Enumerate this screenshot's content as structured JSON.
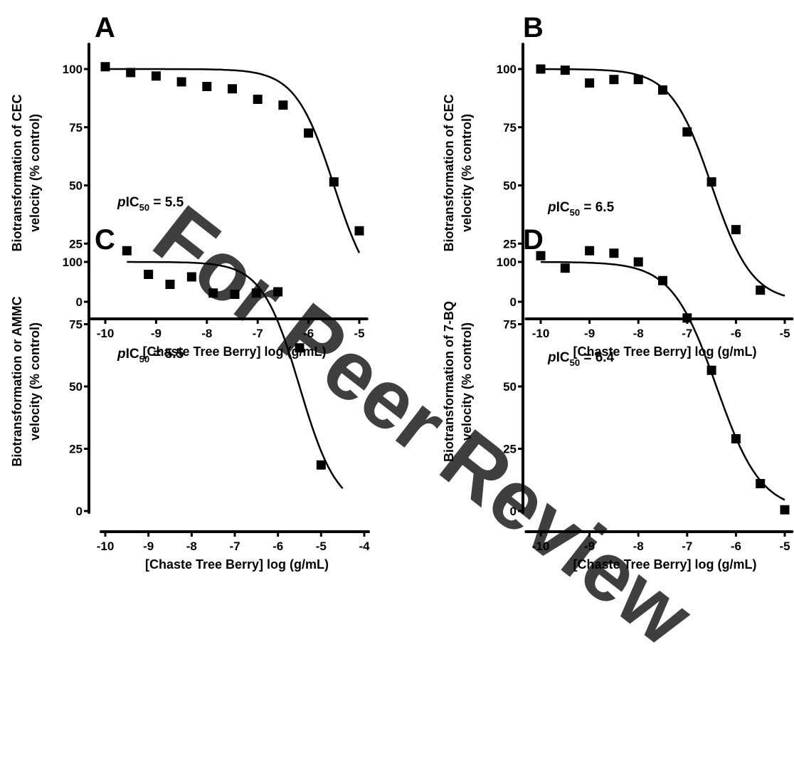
{
  "watermark": "For Peer Review",
  "chart_data": [
    {
      "type": "scatter",
      "panel": "A",
      "xlabel": "[Chaste Tree Berry] log (g/mL)",
      "ylabel_line1": "Biotransformation of CEC",
      "ylabel_line2": "velocity (% control)",
      "xlim": [
        -10.3,
        -4.85
      ],
      "ylim": [
        0,
        110
      ],
      "xticks": [
        -10,
        -9,
        -8,
        -7,
        -6,
        -5
      ],
      "yticks": [
        0,
        25,
        50,
        75,
        100
      ],
      "grid": false,
      "annotation": {
        "prefix": "p",
        "main": "IC",
        "sub": "50",
        "suffix": " = 5.5"
      },
      "fit": {
        "top": 100,
        "bottom": 0,
        "logIC50": -5.5,
        "hill": 1.15,
        "x_range": [
          -10,
          -5
        ]
      },
      "points": {
        "x": [
          -10,
          -9.5,
          -9,
          -8.5,
          -8,
          -7.5,
          -7,
          -6.5,
          -6,
          -5.5,
          -5
        ],
        "y": [
          101,
          98.5,
          97,
          94.5,
          92.5,
          91.5,
          87,
          84.5,
          72.5,
          51.5,
          30.5
        ]
      }
    },
    {
      "type": "scatter",
      "panel": "B",
      "xlabel": "[Chaste Tree Berry] log (g/mL)",
      "ylabel_line1": "Biotransformation of CEC",
      "ylabel_line2": "velocity (% control)",
      "xlim": [
        -10.3,
        -4.85
      ],
      "ylim": [
        0,
        110
      ],
      "xticks": [
        -10,
        -9,
        -8,
        -7,
        -6,
        -5
      ],
      "yticks": [
        0,
        25,
        50,
        75,
        100
      ],
      "grid": false,
      "annotation": {
        "prefix": "p",
        "main": "IC",
        "sub": "50",
        "suffix": " = 6.5"
      },
      "fit": {
        "top": 100,
        "bottom": 0,
        "logIC50": -6.5,
        "hill": 1.05,
        "x_range": [
          -10,
          -5
        ]
      },
      "points": {
        "x": [
          -10,
          -9.5,
          -9,
          -8.5,
          -8,
          -7.5,
          -7,
          -6.5,
          -6,
          -5.5
        ],
        "y": [
          100,
          99.5,
          94,
          95.5,
          95.5,
          91,
          73,
          51.5,
          31,
          5
        ]
      }
    },
    {
      "type": "scatter",
      "panel": "C",
      "xlabel": "[Chaste Tree Berry] log (g/mL)",
      "ylabel_line1": "Biotransformation or AMMC",
      "ylabel_line2": "velocity (% control)",
      "xlim": [
        -10.1,
        -3.9
      ],
      "ylim": [
        0,
        110
      ],
      "xticks": [
        -10,
        -9,
        -8,
        -7,
        -6,
        -5,
        -4
      ],
      "yticks": [
        0,
        25,
        50,
        75,
        100
      ],
      "grid": false,
      "annotation": {
        "prefix": "p",
        "main": "IC",
        "sub": "50",
        "suffix": " = 5.5"
      },
      "fit": {
        "top": 100,
        "bottom": 0,
        "logIC50": -5.5,
        "hill": 1.0,
        "x_range": [
          -9.5,
          -4.5
        ]
      },
      "points": {
        "x": [
          -9.5,
          -9,
          -8.5,
          -8,
          -7.5,
          -7,
          -6.5,
          -6,
          -5.5,
          -5
        ],
        "y": [
          104.5,
          95,
          91,
          94,
          87.5,
          87,
          87.5,
          88,
          65.5,
          18.5
        ]
      }
    },
    {
      "type": "scatter",
      "panel": "D",
      "xlabel": "[Chaste Tree Berry] log (g/mL)",
      "ylabel_line1": "Biotransformation of 7-BQ",
      "ylabel_line2": "velocity (% control)",
      "xlim": [
        -10.3,
        -4.85
      ],
      "ylim": [
        0,
        110
      ],
      "xticks": [
        -10,
        -9,
        -8,
        -7,
        -6,
        -5
      ],
      "yticks": [
        0,
        25,
        50,
        75,
        100
      ],
      "grid": false,
      "annotation": {
        "prefix": "p",
        "main": "IC",
        "sub": "50",
        "suffix": " = 6.4"
      },
      "fit": {
        "top": 100,
        "bottom": 0,
        "logIC50": -6.4,
        "hill": 0.95,
        "x_range": [
          -10,
          -5
        ]
      },
      "points": {
        "x": [
          -10,
          -9.5,
          -9,
          -8.5,
          -8,
          -7.5,
          -7,
          -6.5,
          -6,
          -5.5,
          -5
        ],
        "y": [
          102.5,
          97.5,
          104.5,
          103.5,
          100,
          92.5,
          77.5,
          56.5,
          29,
          11,
          0.5
        ]
      }
    }
  ]
}
